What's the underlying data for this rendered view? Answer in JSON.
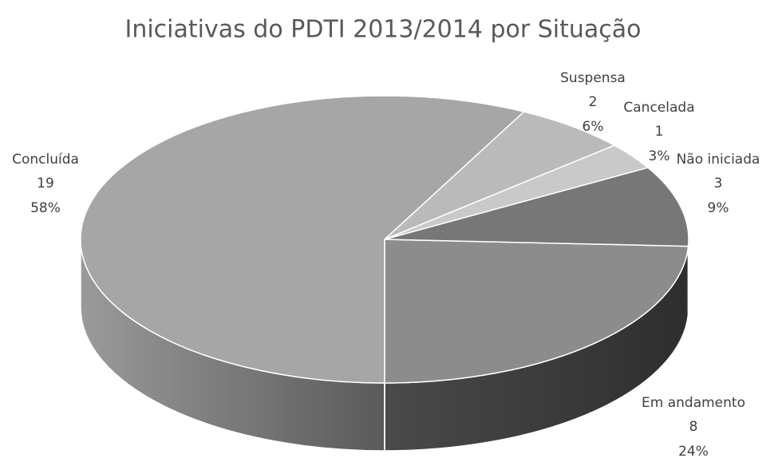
{
  "chart_data": {
    "type": "pie3d",
    "title": "Iniciativas do PDTI 2013/2014 por Situação",
    "categories": [
      "Em andamento",
      "Não iniciada",
      "Cancelada",
      "Suspensa",
      "Concluída"
    ],
    "values": [
      8,
      3,
      1,
      2,
      19
    ],
    "percentages": [
      24,
      9,
      3,
      6,
      58
    ],
    "percentage_labels": [
      "24%",
      "9%",
      "3%",
      "6%",
      "58%"
    ],
    "colors": [
      "#8c8c8c",
      "#777777",
      "#c9c9c9",
      "#bababa",
      "#a6a6a6"
    ]
  }
}
